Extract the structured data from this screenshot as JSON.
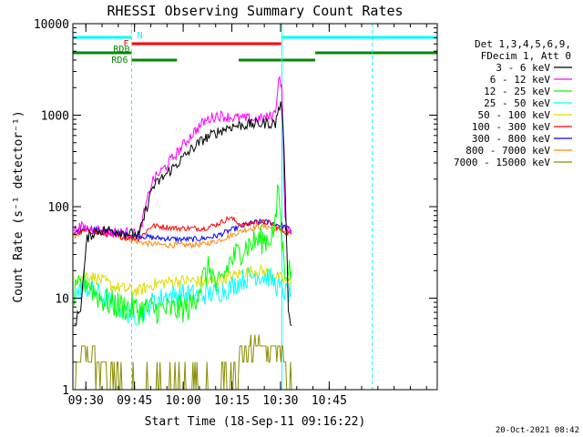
{
  "chart_data": {
    "type": "line",
    "title": "RHESSI Observing Summary Count Rates",
    "xlabel": "Start Time (18-Sep-11 09:16:22)",
    "ylabel": "Count Rate (s⁻¹ detector⁻¹)",
    "yscale": "log",
    "ylim": [
      1,
      10000
    ],
    "xlim_minutes": [
      9.6,
      121.9
    ],
    "x_tick_labels": [
      "09:30",
      "09:45",
      "10:00",
      "10:15",
      "10:30",
      "10:45"
    ],
    "x_ticks_minutes": [
      13.6,
      28.6,
      43.6,
      58.6,
      73.6,
      88.6
    ],
    "y_tick_labels": [
      "1",
      "10",
      "100",
      "1000",
      "10000"
    ],
    "y_ticks": [
      1,
      10,
      100,
      1000,
      10000
    ],
    "legend_position": "right",
    "legend_header": [
      "Det 1,3,4,5,6,9,",
      "FDecim 1, Att 0"
    ],
    "timestamp": "20-Oct-2021 08:42",
    "series": [
      {
        "name": "3 - 6 keV",
        "color": "#000000",
        "x": [
          10,
          12,
          14,
          16,
          18,
          22,
          26,
          30,
          34,
          38,
          42,
          46,
          50,
          54,
          58,
          62,
          66,
          70,
          72,
          73,
          74,
          75,
          76,
          77
        ],
        "y": [
          5,
          8,
          45,
          52,
          55,
          55,
          52,
          48,
          160,
          220,
          300,
          420,
          550,
          650,
          750,
          780,
          800,
          820,
          800,
          1200,
          1300,
          200,
          8,
          5
        ]
      },
      {
        "name": "6 - 12 keV",
        "color": "#ff00ff",
        "x": [
          10,
          12,
          14,
          16,
          18,
          22,
          26,
          30,
          34,
          38,
          42,
          46,
          50,
          54,
          58,
          62,
          66,
          70,
          72,
          73,
          74,
          75,
          76,
          77
        ],
        "y": [
          55,
          60,
          58,
          58,
          55,
          52,
          52,
          50,
          190,
          270,
          400,
          600,
          850,
          1000,
          950,
          920,
          900,
          950,
          1050,
          2600,
          2200,
          70,
          55,
          50
        ]
      },
      {
        "name": "12 - 25 keV",
        "color": "#00ff00",
        "x": [
          10,
          12,
          14,
          16,
          18,
          22,
          26,
          30,
          34,
          38,
          42,
          46,
          50,
          52,
          54,
          58,
          62,
          66,
          70,
          72,
          73,
          74,
          75,
          76,
          77
        ],
        "y": [
          10,
          14,
          16,
          12,
          10,
          8.5,
          8,
          7.5,
          7.5,
          7.5,
          7.5,
          8,
          17,
          22,
          12,
          25,
          35,
          42,
          45,
          60,
          180,
          40,
          22,
          20,
          20
        ]
      },
      {
        "name": "25 - 50 keV",
        "color": "#00ffff",
        "x": [
          10,
          14,
          18,
          22,
          26,
          30,
          34,
          38,
          42,
          46,
          50,
          54,
          58,
          62,
          66,
          70,
          74,
          77
        ],
        "y": [
          11,
          13,
          11,
          8.5,
          7,
          6.5,
          9,
          10.5,
          11,
          11,
          11,
          11.5,
          13,
          16,
          18,
          17,
          12,
          11
        ]
      },
      {
        "name": "50 - 100 keV",
        "color": "#dddd00",
        "x": [
          10,
          14,
          18,
          22,
          26,
          30,
          34,
          38,
          42,
          46,
          50,
          54,
          58,
          62,
          66,
          70,
          74,
          77
        ],
        "y": [
          16,
          18,
          16,
          13.5,
          12.5,
          12,
          14,
          15,
          15.5,
          15.5,
          15,
          15.5,
          17,
          19,
          20,
          19,
          16,
          15
        ]
      },
      {
        "name": "100 - 300 keV",
        "color": "#ff0000",
        "x": [
          10,
          14,
          18,
          22,
          26,
          30,
          34,
          38,
          42,
          46,
          50,
          54,
          58,
          62,
          66,
          70,
          74,
          77
        ],
        "y": [
          50,
          55,
          52,
          48,
          46,
          45,
          62,
          60,
          58,
          58,
          58,
          64,
          76,
          62,
          68,
          67,
          55,
          50
        ]
      },
      {
        "name": "300 - 800 keV",
        "color": "#0000ff",
        "x": [
          10,
          14,
          18,
          22,
          26,
          30,
          34,
          38,
          42,
          46,
          50,
          54,
          58,
          62,
          66,
          70,
          74,
          77
        ],
        "y": [
          52,
          58,
          56,
          53,
          50,
          48,
          46,
          45,
          44,
          44,
          45,
          48,
          55,
          62,
          68,
          68,
          62,
          55
        ]
      },
      {
        "name": "800 - 7000 keV",
        "color": "#ff8800",
        "x": [
          10,
          14,
          18,
          22,
          26,
          30,
          34,
          38,
          42,
          46,
          50,
          54,
          58,
          62,
          66,
          70,
          74,
          77
        ],
        "y": [
          48,
          55,
          52,
          50,
          45,
          41,
          39,
          38,
          38,
          38,
          39,
          42,
          48,
          55,
          60,
          60,
          55,
          50
        ]
      },
      {
        "name": "7000 - 15000 keV",
        "color": "#8b8b00",
        "x": [
          10,
          12,
          14,
          16,
          18,
          22,
          26,
          30,
          34,
          38,
          42,
          46,
          50,
          54,
          58,
          62,
          66,
          70,
          74,
          77
        ],
        "y": [
          1,
          2.5,
          2.5,
          2,
          1.8,
          1.5,
          1,
          1,
          1,
          1,
          1,
          1,
          1,
          1,
          1.5,
          2.5,
          3,
          3,
          2.5,
          1
        ]
      }
    ],
    "flag_bars": [
      {
        "label": "N",
        "color": "#00ffff",
        "segments": [
          [
            9.6,
            27.7
          ],
          [
            74.0,
            121.9
          ]
        ]
      },
      {
        "label": "F",
        "color": "#ff0000",
        "segments": [
          [
            27.7,
            73.8
          ]
        ]
      },
      {
        "label": "RD0",
        "color": "#008800",
        "segments": [
          [
            9.6,
            27.7
          ],
          [
            84.3,
            121.9
          ]
        ]
      },
      {
        "label": "RD6",
        "color": "#008800",
        "segments": [
          [
            27.7,
            41.7
          ],
          [
            60.7,
            84.3
          ]
        ]
      }
    ],
    "vertical_lines": [
      {
        "x": 9.6,
        "style": "solid"
      },
      {
        "x": 27.7,
        "style": "dashed"
      },
      {
        "x": 74.0,
        "style": "solid"
      },
      {
        "x": 101.9,
        "style": "dashed"
      }
    ]
  }
}
